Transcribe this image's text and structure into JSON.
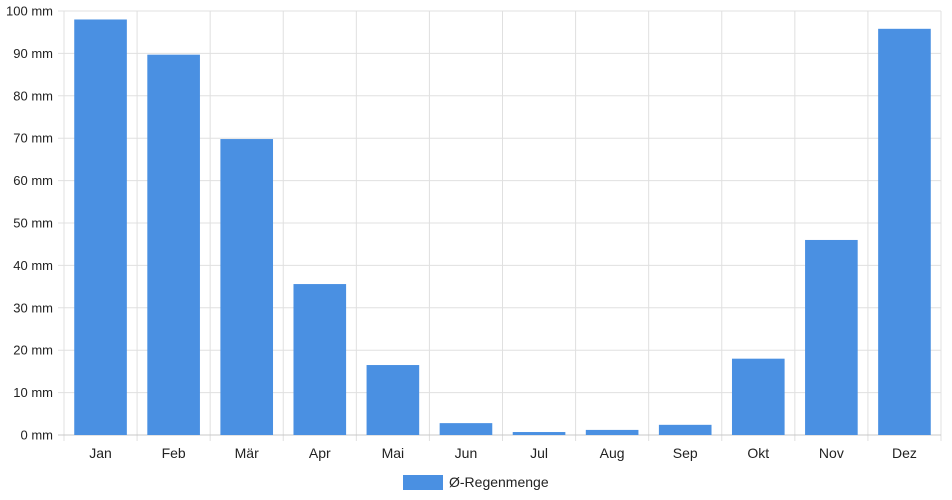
{
  "chart_data": {
    "type": "bar",
    "categories": [
      "Jan",
      "Feb",
      "Mär",
      "Apr",
      "Mai",
      "Jun",
      "Jul",
      "Aug",
      "Sep",
      "Okt",
      "Nov",
      "Dez"
    ],
    "series": [
      {
        "name": "Ø-Regenmenge",
        "values": [
          98,
          89.7,
          69.8,
          35.6,
          16.5,
          2.8,
          0.7,
          1.2,
          2.4,
          18,
          46,
          95.8
        ]
      }
    ],
    "ylim": [
      0,
      100
    ],
    "yticks": [
      "0 mm",
      "10 mm",
      "20 mm",
      "30 mm",
      "40 mm",
      "50 mm",
      "60 mm",
      "70 mm",
      "80 mm",
      "90 mm",
      "100 mm"
    ],
    "ytick_values": [
      0,
      10,
      20,
      30,
      40,
      50,
      60,
      70,
      80,
      90,
      100
    ],
    "grid": true,
    "legend_position": "bottom",
    "colors": {
      "bar": "#4a90e2",
      "grid": "#e0e0e0"
    }
  }
}
